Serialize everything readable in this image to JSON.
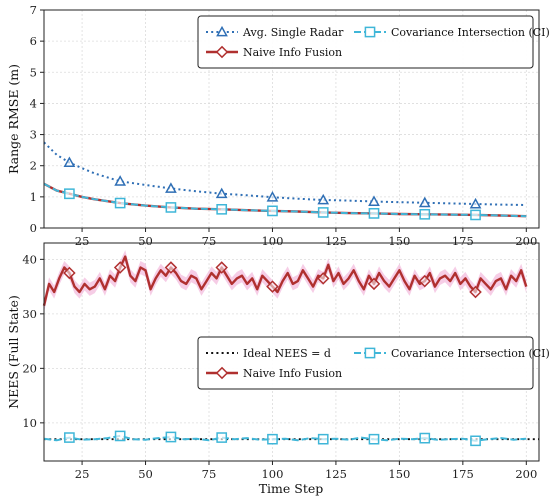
{
  "colors": {
    "radar": "#2f6fb5",
    "naive": "#b0302f",
    "naive_band": "#f2b8dc",
    "ci": "#3fb6d8",
    "ideal": "#111111"
  },
  "chart_data": [
    {
      "type": "line",
      "title": "",
      "xlabel": "",
      "ylabel": "Range RMSE (m)",
      "xlim": [
        10,
        205
      ],
      "ylim": [
        0,
        7
      ],
      "xticks": [
        25,
        50,
        75,
        100,
        125,
        150,
        175,
        200
      ],
      "yticks": [
        0,
        1,
        2,
        3,
        4,
        5,
        6,
        7
      ],
      "grid": true,
      "legend_position": "top-right",
      "series": [
        {
          "name": "Avg. Single Radar",
          "style": "dotted",
          "marker": "triangle",
          "color_key": "radar",
          "x": [
            10,
            15,
            20,
            25,
            30,
            40,
            50,
            60,
            70,
            80,
            90,
            100,
            110,
            120,
            130,
            140,
            150,
            160,
            170,
            180,
            190,
            200
          ],
          "y": [
            2.75,
            2.35,
            2.1,
            1.92,
            1.75,
            1.5,
            1.38,
            1.27,
            1.18,
            1.1,
            1.05,
            0.99,
            0.94,
            0.9,
            0.88,
            0.85,
            0.83,
            0.81,
            0.79,
            0.77,
            0.75,
            0.74
          ],
          "markers_at": [
            20,
            40,
            60,
            80,
            100,
            120,
            140,
            160,
            180
          ]
        },
        {
          "name": "Naive Info Fusion",
          "style": "solid",
          "marker": "diamond",
          "color_key": "naive",
          "x": [
            10,
            15,
            20,
            25,
            30,
            40,
            50,
            60,
            70,
            80,
            90,
            100,
            110,
            120,
            130,
            140,
            150,
            160,
            170,
            180,
            190,
            200
          ],
          "y": [
            1.42,
            1.2,
            1.1,
            1.0,
            0.92,
            0.8,
            0.72,
            0.66,
            0.62,
            0.6,
            0.57,
            0.55,
            0.53,
            0.5,
            0.48,
            0.47,
            0.45,
            0.44,
            0.43,
            0.42,
            0.4,
            0.38
          ],
          "markers_at": []
        },
        {
          "name": "Covariance Intersection (CI)",
          "style": "dashed",
          "marker": "square",
          "color_key": "ci",
          "x": [
            10,
            15,
            20,
            25,
            30,
            40,
            50,
            60,
            70,
            80,
            90,
            100,
            110,
            120,
            130,
            140,
            150,
            160,
            170,
            180,
            190,
            200
          ],
          "y": [
            1.42,
            1.2,
            1.1,
            1.0,
            0.92,
            0.8,
            0.72,
            0.66,
            0.62,
            0.6,
            0.57,
            0.55,
            0.53,
            0.5,
            0.48,
            0.47,
            0.45,
            0.44,
            0.43,
            0.42,
            0.4,
            0.38
          ],
          "markers_at": [
            20,
            40,
            60,
            80,
            100,
            120,
            140,
            160,
            180
          ]
        }
      ]
    },
    {
      "type": "line",
      "title": "",
      "xlabel": "Time Step",
      "ylabel": "NEES (Full State)",
      "xlim": [
        10,
        205
      ],
      "ylim": [
        3,
        43
      ],
      "xticks": [
        25,
        50,
        75,
        100,
        125,
        150,
        175,
        200
      ],
      "yticks": [
        10,
        20,
        30,
        40
      ],
      "grid": true,
      "legend_position": "center-right",
      "series": [
        {
          "name": "Ideal NEES = d",
          "style": "dotted",
          "marker": "none",
          "color_key": "ideal",
          "x": [
            10,
            205
          ],
          "y": [
            7,
            7
          ],
          "markers_at": []
        },
        {
          "name": "Naive Info Fusion",
          "style": "solid",
          "marker": "diamond",
          "color_key": "naive",
          "x": [
            10,
            12,
            14,
            16,
            18,
            20,
            22,
            24,
            26,
            28,
            30,
            32,
            34,
            36,
            38,
            40,
            42,
            44,
            46,
            48,
            50,
            52,
            54,
            56,
            58,
            60,
            62,
            64,
            66,
            68,
            70,
            72,
            74,
            76,
            78,
            80,
            82,
            84,
            86,
            88,
            90,
            92,
            94,
            96,
            98,
            100,
            102,
            104,
            106,
            108,
            110,
            112,
            114,
            116,
            118,
            120,
            122,
            124,
            126,
            128,
            130,
            132,
            134,
            136,
            138,
            140,
            142,
            144,
            146,
            148,
            150,
            152,
            154,
            156,
            158,
            160,
            162,
            164,
            166,
            168,
            170,
            172,
            174,
            176,
            178,
            180,
            182,
            184,
            186,
            188,
            190,
            192,
            194,
            196,
            198,
            200
          ],
          "y": [
            31.5,
            35.5,
            34.0,
            36.5,
            38.5,
            37.5,
            35.0,
            34.0,
            35.5,
            34.5,
            35.0,
            36.5,
            34.5,
            37.0,
            36.0,
            38.5,
            40.5,
            37.0,
            36.0,
            38.5,
            38.0,
            34.5,
            36.5,
            38.0,
            37.0,
            38.5,
            37.5,
            36.0,
            35.5,
            37.0,
            36.5,
            34.5,
            36.0,
            37.5,
            36.5,
            38.5,
            37.0,
            35.5,
            36.5,
            37.0,
            35.5,
            36.5,
            34.5,
            37.0,
            36.0,
            35.0,
            34.0,
            36.0,
            37.5,
            35.5,
            36.0,
            38.0,
            36.5,
            35.0,
            37.0,
            36.5,
            39.0,
            36.0,
            37.5,
            35.5,
            36.5,
            38.0,
            36.0,
            34.5,
            37.0,
            35.5,
            37.5,
            36.0,
            35.0,
            36.5,
            38.0,
            36.0,
            34.5,
            37.0,
            35.5,
            36.0,
            37.5,
            35.0,
            36.5,
            37.0,
            36.0,
            37.5,
            35.5,
            36.5,
            35.0,
            34.0,
            36.5,
            35.5,
            34.5,
            36.0,
            36.5,
            34.5,
            37.0,
            36.0,
            38.0,
            35.0
          ],
          "markers_at": [
            20,
            40,
            60,
            80,
            100,
            120,
            140,
            160,
            180
          ],
          "band": 1.2
        },
        {
          "name": "Covariance Intersection (CI)",
          "style": "dashed",
          "marker": "square",
          "color_key": "ci",
          "x": [
            10,
            15,
            20,
            25,
            30,
            35,
            40,
            45,
            50,
            55,
            60,
            65,
            70,
            75,
            80,
            85,
            90,
            95,
            100,
            105,
            110,
            115,
            120,
            125,
            130,
            135,
            140,
            145,
            150,
            155,
            160,
            165,
            170,
            175,
            180,
            185,
            190,
            195,
            200
          ],
          "y": [
            7.1,
            6.8,
            7.3,
            6.9,
            7.0,
            7.2,
            7.6,
            7.0,
            6.9,
            7.2,
            7.4,
            7.0,
            7.1,
            6.8,
            7.3,
            7.0,
            7.2,
            6.9,
            7.0,
            7.1,
            6.8,
            7.2,
            7.0,
            7.1,
            6.9,
            7.3,
            7.0,
            6.8,
            7.1,
            7.0,
            7.2,
            6.9,
            7.0,
            7.1,
            6.7,
            7.0,
            7.2,
            6.9,
            7.1
          ],
          "markers_at": [
            20,
            40,
            60,
            80,
            100,
            120,
            140,
            160,
            180
          ]
        }
      ]
    }
  ]
}
